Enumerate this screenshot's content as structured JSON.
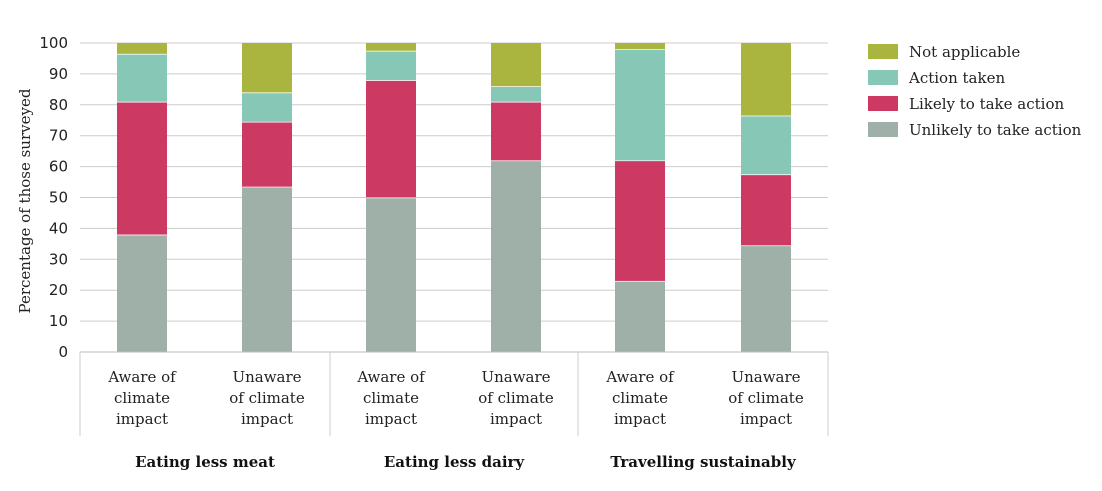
{
  "chart_data": {
    "type": "bar",
    "stacked": true,
    "ylabel": "Percentage of those surveyed",
    "ylim": [
      0,
      100
    ],
    "yticks": [
      0,
      10,
      20,
      30,
      40,
      50,
      60,
      70,
      80,
      90,
      100
    ],
    "grid": true,
    "legend_position": "right",
    "groups": [
      "Eating less meat",
      "Eating less dairy",
      "Travelling sustainably"
    ],
    "categories": [
      "Aware of climate impact",
      "Unaware of climate impact",
      "Aware of climate impact",
      "Unaware of climate impact",
      "Aware of climate impact",
      "Unaware of climate impact"
    ],
    "category_lines": [
      [
        "Aware of",
        "climate",
        "impact"
      ],
      [
        "Unaware",
        "of climate",
        "impact"
      ],
      [
        "Aware of",
        "climate",
        "impact"
      ],
      [
        "Unaware",
        "of climate",
        "impact"
      ],
      [
        "Aware of",
        "climate",
        "impact"
      ],
      [
        "Unaware",
        "of climate",
        "impact"
      ]
    ],
    "series": [
      {
        "name": "Unlikely to take action",
        "color": "#9fb0a9",
        "values": [
          38,
          53.5,
          50,
          62,
          23,
          34.5
        ]
      },
      {
        "name": "Likely to take action",
        "color": "#cc3a64",
        "values": [
          43,
          21,
          38,
          19,
          39,
          23
        ]
      },
      {
        "name": "Action taken",
        "color": "#86c8b5",
        "values": [
          15.5,
          9.5,
          9.5,
          5,
          36,
          19
        ]
      },
      {
        "name": "Not applicable",
        "color": "#a9b53e",
        "values": [
          3.5,
          16,
          2.5,
          14,
          2,
          23.5
        ]
      }
    ],
    "legend_order": [
      "Not applicable",
      "Action taken",
      "Likely to take action",
      "Unlikely to take action"
    ]
  }
}
